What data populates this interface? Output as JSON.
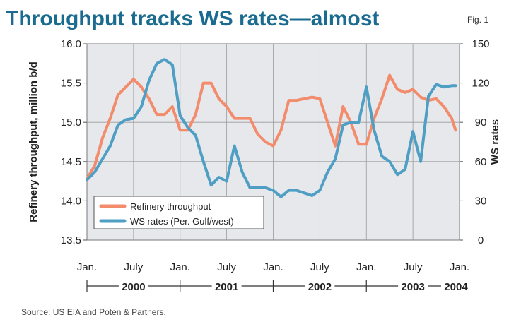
{
  "header": {
    "title": "Throughput tracks WS rates—almost",
    "fig_label": "Fig. 1"
  },
  "source": "Source: US EIA and Poten & Partners.",
  "colors": {
    "throughput": "#f28c6c",
    "ws": "#4f9ec4",
    "title": "#1a6b8f",
    "plot_bg": "#e6e8ec"
  },
  "chart_data": {
    "type": "line",
    "title": "Throughput tracks WS rates—almost",
    "ylabel": "Refinery throughput, million b/d",
    "y2label": "WS rates",
    "ylim": [
      13.5,
      16.0
    ],
    "y2lim": [
      0,
      150
    ],
    "yticks": [
      "13.5",
      "14.0",
      "14.5",
      "15.0",
      "15.5",
      "16.0"
    ],
    "y2ticks": [
      "0",
      "30",
      "60",
      "90",
      "120",
      "150"
    ],
    "x_month_labels": [
      "Jan.",
      "July",
      "Jan.",
      "July",
      "Jan.",
      "July",
      "Jan.",
      "July",
      "Jan."
    ],
    "x_year_labels": [
      "2000",
      "2001",
      "2002",
      "2003",
      "2004"
    ],
    "xlim": [
      0,
      48
    ],
    "legend_position": "bottom-left",
    "series": [
      {
        "name": "Refinery throughput",
        "axis": "left",
        "x": [
          0,
          1,
          2,
          3,
          4,
          5,
          6,
          7,
          8,
          9,
          10,
          11,
          12,
          13,
          14,
          15,
          16,
          17,
          18,
          19,
          20,
          21,
          22,
          23,
          24,
          25,
          26,
          27,
          28,
          29,
          30,
          31,
          32,
          33,
          34,
          35,
          36,
          37,
          38,
          39,
          40,
          41,
          42,
          43,
          44,
          45,
          46,
          47,
          47.5
        ],
        "values": [
          14.28,
          14.45,
          14.8,
          15.05,
          15.35,
          15.45,
          15.55,
          15.45,
          15.3,
          15.1,
          15.1,
          15.2,
          14.9,
          14.9,
          15.1,
          15.5,
          15.5,
          15.3,
          15.2,
          15.05,
          15.05,
          15.05,
          14.85,
          14.75,
          14.7,
          14.9,
          15.28,
          15.28,
          15.3,
          15.32,
          15.3,
          15.0,
          14.7,
          15.2,
          15.0,
          14.72,
          14.72,
          15.05,
          15.3,
          15.6,
          15.42,
          15.38,
          15.42,
          15.32,
          15.28,
          15.3,
          15.2,
          15.05,
          14.9
        ]
      },
      {
        "name": "WS rates (Per. Gulf/west)",
        "axis": "right",
        "x": [
          0,
          1,
          2,
          3,
          4,
          5,
          6,
          7,
          8,
          9,
          10,
          11,
          12,
          13,
          14,
          15,
          16,
          17,
          18,
          19,
          20,
          21,
          22,
          23,
          24,
          25,
          26,
          27,
          28,
          29,
          30,
          31,
          32,
          33,
          34,
          35,
          36,
          37,
          38,
          39,
          40,
          41,
          42,
          43,
          44,
          45,
          46,
          47,
          47.5
        ],
        "values": [
          46,
          52,
          62,
          72,
          88,
          92,
          93,
          102,
          122,
          135,
          138,
          134,
          95,
          86,
          80,
          60,
          42,
          48,
          45,
          72,
          52,
          40,
          40,
          40,
          38,
          33,
          38,
          38,
          36,
          34,
          38,
          52,
          62,
          88,
          90,
          90,
          117,
          84,
          64,
          60,
          50,
          54,
          83,
          60,
          110,
          119,
          117,
          118,
          118
        ]
      }
    ]
  }
}
